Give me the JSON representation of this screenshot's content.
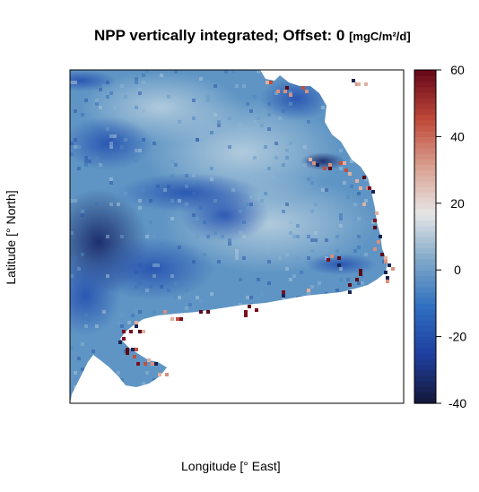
{
  "title": {
    "main": "NPP vertically integrated; Offset: 0",
    "unit": "[mgC/m²/d]"
  },
  "axes": {
    "xlabel": "Longitude [° East]",
    "ylabel": "Latitude [° North]"
  },
  "chart_data": {
    "type": "heatmap",
    "title": "NPP vertically integrated; Offset: 0",
    "unit": "[mgC/m²/d]",
    "xlabel": "Longitude [° East]",
    "ylabel": "Latitude [° North]",
    "colorbar": {
      "min": -40,
      "max": 60,
      "ticks": [
        60,
        40,
        20,
        0,
        -20,
        -40
      ],
      "tick_labels": [
        "60",
        "40",
        "20",
        "0",
        "-20",
        "-40"
      ],
      "colors": [
        "#141a3c",
        "#1f3fa0",
        "#2f6ec0",
        "#7fa8c9",
        "#e6e6e6",
        "#d9a090",
        "#c04a3a",
        "#6a0a1a"
      ],
      "placement": "right"
    },
    "axis_ticks_shown": false,
    "grid": false,
    "missing_color": "#ffffff"
  }
}
